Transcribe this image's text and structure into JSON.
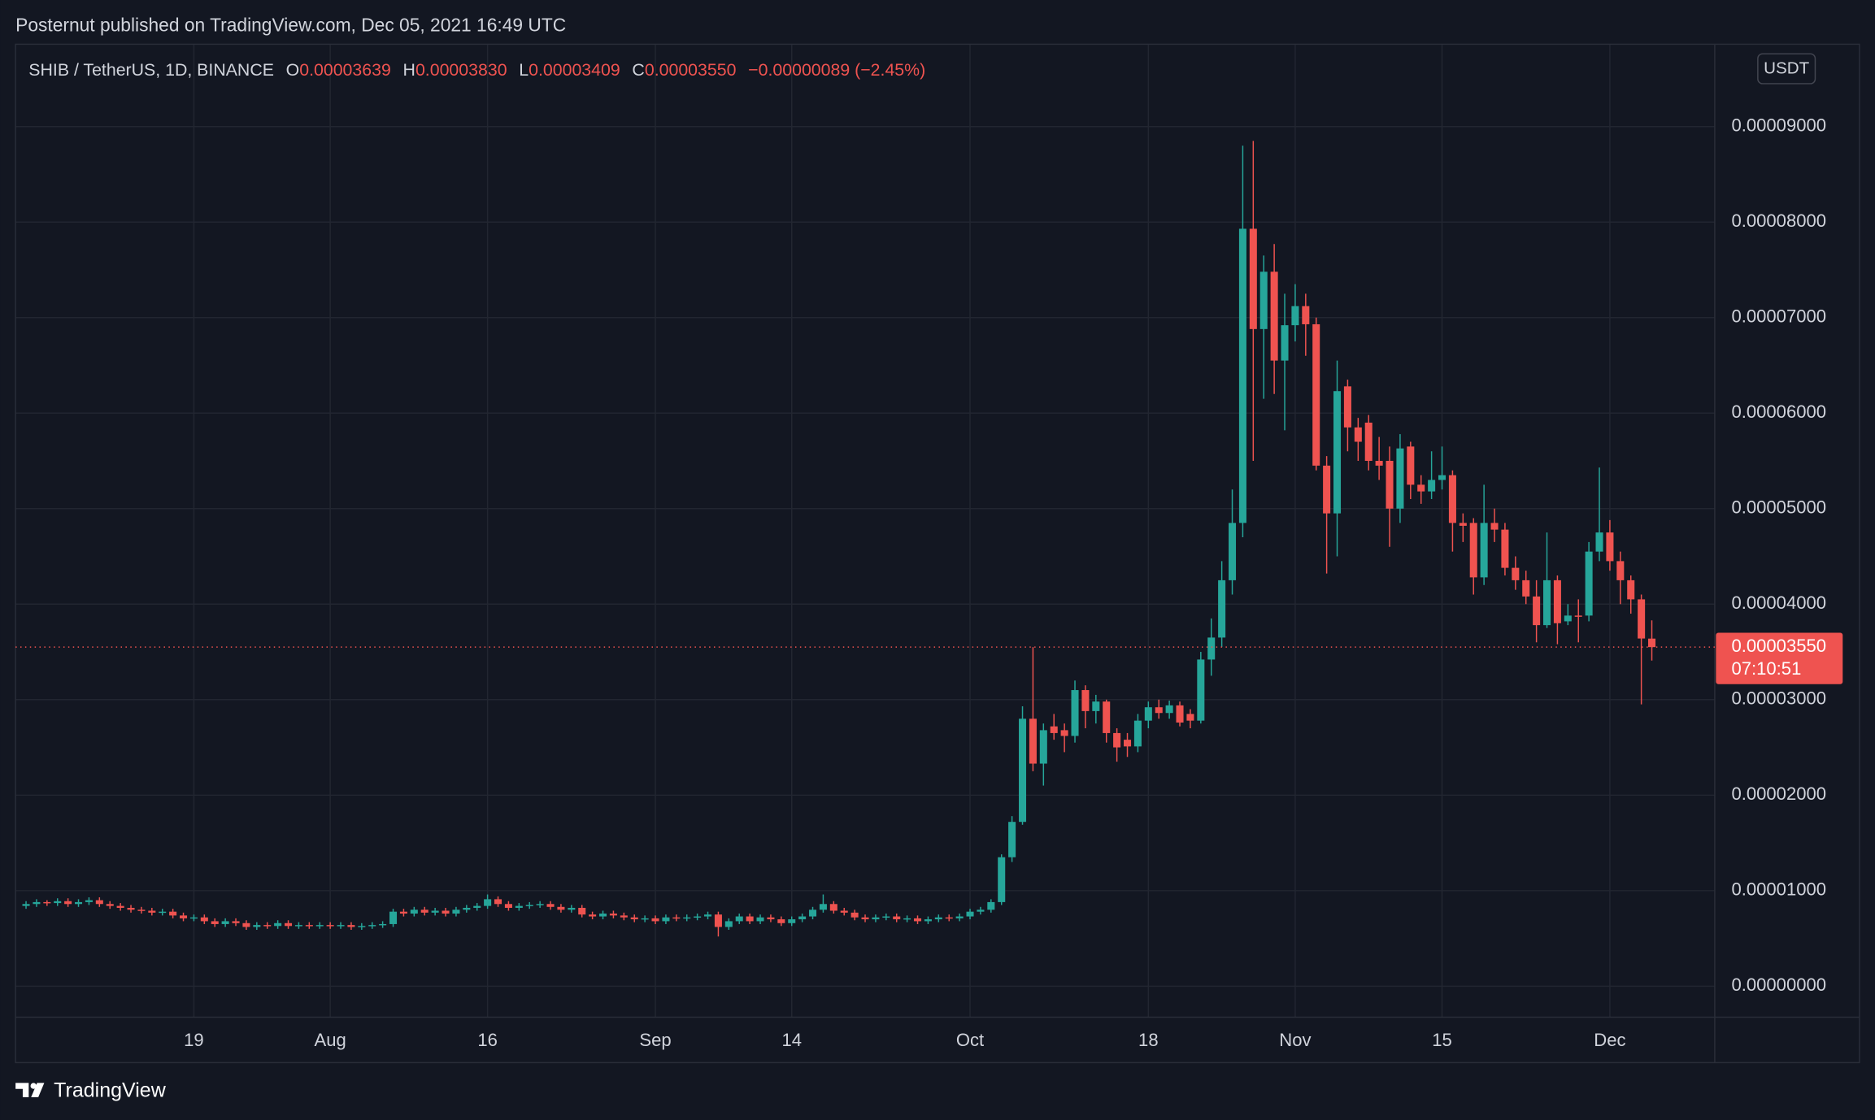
{
  "header": {
    "published": "Posternut published on TradingView.com, Dec 05, 2021 16:49 UTC",
    "currency": "USDT"
  },
  "legend": {
    "symbol": "SHIB / TetherUS, 1D, BINANCE",
    "open_label": "O",
    "open": "0.00003639",
    "high_label": "H",
    "high": "0.00003830",
    "low_label": "L",
    "low": "0.00003409",
    "close_label": "C",
    "close": "0.00003550",
    "change": "−0.00000089 (−2.45%)"
  },
  "footer": {
    "brand": "TradingView"
  },
  "chart_data": {
    "type": "candlestick",
    "up_color": "#26a69a",
    "down_color": "#ef5350",
    "grid": true,
    "last_price_label": "0.00003550",
    "countdown": "07:10:51",
    "xlim": [
      "2021-07-02",
      "2021-12-11"
    ],
    "xticks": [
      {
        "value": "2021-07-19",
        "label": "19"
      },
      {
        "value": "2021-08-01",
        "label": "Aug"
      },
      {
        "value": "2021-08-16",
        "label": "16"
      },
      {
        "value": "2021-09-01",
        "label": "Sep"
      },
      {
        "value": "2021-09-14",
        "label": "14"
      },
      {
        "value": "2021-10-01",
        "label": "Oct"
      },
      {
        "value": "2021-10-18",
        "label": "18"
      },
      {
        "value": "2021-11-01",
        "label": "Nov"
      },
      {
        "value": "2021-11-15",
        "label": "15"
      },
      {
        "value": "2021-12-01",
        "label": "Dec"
      }
    ],
    "ylim": [
      -3.25e-06,
      9.862e-05
    ],
    "yticks": [
      {
        "value": 0,
        "label": "0.00000000"
      },
      {
        "value": 1e-05,
        "label": "0.00001000"
      },
      {
        "value": 2e-05,
        "label": "0.00002000"
      },
      {
        "value": 3e-05,
        "label": "0.00003000"
      },
      {
        "value": 4e-05,
        "label": "0.00004000"
      },
      {
        "value": 5e-05,
        "label": "0.00005000"
      },
      {
        "value": 6e-05,
        "label": "0.00006000"
      },
      {
        "value": 7e-05,
        "label": "0.00007000"
      },
      {
        "value": 8e-05,
        "label": "0.00008000"
      },
      {
        "value": 9e-05,
        "label": "0.00009000"
      }
    ],
    "x": [
      "2021-07-03",
      "2021-07-04",
      "2021-07-05",
      "2021-07-06",
      "2021-07-07",
      "2021-07-08",
      "2021-07-09",
      "2021-07-10",
      "2021-07-11",
      "2021-07-12",
      "2021-07-13",
      "2021-07-14",
      "2021-07-15",
      "2021-07-16",
      "2021-07-17",
      "2021-07-18",
      "2021-07-19",
      "2021-07-20",
      "2021-07-21",
      "2021-07-22",
      "2021-07-23",
      "2021-07-24",
      "2021-07-25",
      "2021-07-26",
      "2021-07-27",
      "2021-07-28",
      "2021-07-29",
      "2021-07-30",
      "2021-07-31",
      "2021-08-01",
      "2021-08-02",
      "2021-08-03",
      "2021-08-04",
      "2021-08-05",
      "2021-08-06",
      "2021-08-07",
      "2021-08-08",
      "2021-08-09",
      "2021-08-10",
      "2021-08-11",
      "2021-08-12",
      "2021-08-13",
      "2021-08-14",
      "2021-08-15",
      "2021-08-16",
      "2021-08-17",
      "2021-08-18",
      "2021-08-19",
      "2021-08-20",
      "2021-08-21",
      "2021-08-22",
      "2021-08-23",
      "2021-08-24",
      "2021-08-25",
      "2021-08-26",
      "2021-08-27",
      "2021-08-28",
      "2021-08-29",
      "2021-08-30",
      "2021-08-31",
      "2021-09-01",
      "2021-09-02",
      "2021-09-03",
      "2021-09-04",
      "2021-09-05",
      "2021-09-06",
      "2021-09-07",
      "2021-09-08",
      "2021-09-09",
      "2021-09-10",
      "2021-09-11",
      "2021-09-12",
      "2021-09-13",
      "2021-09-14",
      "2021-09-15",
      "2021-09-16",
      "2021-09-17",
      "2021-09-18",
      "2021-09-19",
      "2021-09-20",
      "2021-09-21",
      "2021-09-22",
      "2021-09-23",
      "2021-09-24",
      "2021-09-25",
      "2021-09-26",
      "2021-09-27",
      "2021-09-28",
      "2021-09-29",
      "2021-09-30",
      "2021-10-01",
      "2021-10-02",
      "2021-10-03",
      "2021-10-04",
      "2021-10-05",
      "2021-10-06",
      "2021-10-07",
      "2021-10-08",
      "2021-10-09",
      "2021-10-10",
      "2021-10-11",
      "2021-10-12",
      "2021-10-13",
      "2021-10-14",
      "2021-10-15",
      "2021-10-16",
      "2021-10-17",
      "2021-10-18",
      "2021-10-19",
      "2021-10-20",
      "2021-10-21",
      "2021-10-22",
      "2021-10-23",
      "2021-10-24",
      "2021-10-25",
      "2021-10-26",
      "2021-10-27",
      "2021-10-28",
      "2021-10-29",
      "2021-10-30",
      "2021-10-31",
      "2021-11-01",
      "2021-11-02",
      "2021-11-03",
      "2021-11-04",
      "2021-11-05",
      "2021-11-06",
      "2021-11-07",
      "2021-11-08",
      "2021-11-09",
      "2021-11-10",
      "2021-11-11",
      "2021-11-12",
      "2021-11-13",
      "2021-11-14",
      "2021-11-15",
      "2021-11-16",
      "2021-11-17",
      "2021-11-18",
      "2021-11-19",
      "2021-11-20",
      "2021-11-21",
      "2021-11-22",
      "2021-11-23",
      "2021-11-24",
      "2021-11-25",
      "2021-11-26",
      "2021-11-27",
      "2021-11-28",
      "2021-11-29",
      "2021-11-30",
      "2021-12-01",
      "2021-12-02",
      "2021-12-03",
      "2021-12-04",
      "2021-12-05"
    ],
    "open": [
      8.4e-06,
      8.6e-06,
      8.8e-06,
      8.7e-06,
      8.9e-06,
      8.6e-06,
      8.8e-06,
      9e-06,
      8.6e-06,
      8.4e-06,
      8.2e-06,
      8e-06,
      7.9e-06,
      7.7e-06,
      7.8e-06,
      7.4e-06,
      7.1e-06,
      7.2e-06,
      6.8e-06,
      6.5e-06,
      6.8e-06,
      6.6e-06,
      6.2e-06,
      6.4e-06,
      6.3e-06,
      6.6e-06,
      6.3e-06,
      6.4e-06,
      6.3e-06,
      6.4e-06,
      6.3e-06,
      6.4e-06,
      6.2e-06,
      6.3e-06,
      6.4e-06,
      6.5e-06,
      7.8e-06,
      7.6e-06,
      8e-06,
      7.7e-06,
      7.9e-06,
      7.6e-06,
      8e-06,
      8.2e-06,
      8.4e-06,
      9.1e-06,
      8.6e-06,
      8.2e-06,
      8.4e-06,
      8.5e-06,
      8.6e-06,
      8.3e-06,
      8e-06,
      8.2e-06,
      7.5e-06,
      7.3e-06,
      7.6e-06,
      7.4e-06,
      7.2e-06,
      7e-06,
      7.1e-06,
      6.8e-06,
      7.2e-06,
      7.1e-06,
      7.2e-06,
      7.3e-06,
      7.5e-06,
      6.2e-06,
      6.8e-06,
      7.3e-06,
      6.8e-06,
      7.2e-06,
      7e-06,
      6.6e-06,
      7e-06,
      7.3e-06,
      8e-06,
      8.6e-06,
      7.9e-06,
      7.7e-06,
      7.2e-06,
      7e-06,
      7.2e-06,
      7.3e-06,
      7e-06,
      7.1e-06,
      6.8e-06,
      7e-06,
      7.2e-06,
      7.1e-06,
      7.3e-06,
      7.8e-06,
      8e-06,
      8.8e-06,
      1.35e-05,
      1.72e-05,
      2.8e-05,
      2.33e-05,
      2.72e-05,
      2.68e-05,
      2.62e-05,
      3.1e-05,
      2.88e-05,
      2.98e-05,
      2.65e-05,
      2.58e-05,
      2.51e-05,
      2.78e-05,
      2.92e-05,
      2.86e-05,
      2.94e-05,
      2.85e-05,
      2.78e-05,
      3.42e-05,
      3.65e-05,
      4.25e-05,
      4.85e-05,
      7.93e-05,
      6.88e-05,
      7.48e-05,
      6.55e-05,
      6.92e-05,
      7.12e-05,
      6.93e-05,
      5.45e-05,
      4.95e-05,
      6.28e-05,
      5.85e-05,
      5.9e-05,
      5.5e-05,
      5.5e-05,
      5e-05,
      5.65e-05,
      5.25e-05,
      5.18e-05,
      5.3e-05,
      5.35e-05,
      4.85e-05,
      4.85e-05,
      4.28e-05,
      4.85e-05,
      4.78e-05,
      4.38e-05,
      4.25e-05,
      4.08e-05,
      3.78e-05,
      4.25e-05,
      3.82e-05,
      3.88e-05,
      3.88e-05,
      4.55e-05,
      4.75e-05,
      4.45e-05,
      4.25e-05,
      4.05e-05,
      3.639e-05
    ],
    "high": [
      8.9e-06,
      9.1e-06,
      9e-06,
      9.2e-06,
      9.2e-06,
      9.1e-06,
      9.3e-06,
      9.3e-06,
      8.9e-06,
      8.7e-06,
      8.5e-06,
      8.3e-06,
      8.2e-06,
      8.1e-06,
      8.1e-06,
      7.7e-06,
      7.5e-06,
      7.5e-06,
      7.1e-06,
      7.1e-06,
      7.1e-06,
      6.9e-06,
      6.7e-06,
      6.7e-06,
      6.9e-06,
      6.9e-06,
      6.7e-06,
      6.7e-06,
      6.7e-06,
      6.7e-06,
      6.7e-06,
      6.7e-06,
      6.6e-06,
      6.7e-06,
      6.8e-06,
      8.1e-06,
      8.1e-06,
      8.3e-06,
      8.3e-06,
      8.2e-06,
      8.2e-06,
      8.3e-06,
      8.5e-06,
      8.7e-06,
      9.6e-06,
      9.4e-06,
      8.9e-06,
      8.7e-06,
      8.8e-06,
      8.9e-06,
      8.9e-06,
      8.6e-06,
      8.5e-06,
      8.5e-06,
      7.8e-06,
      7.9e-06,
      7.9e-06,
      7.7e-06,
      7.5e-06,
      7.4e-06,
      7.4e-06,
      7.5e-06,
      7.5e-06,
      7.5e-06,
      7.6e-06,
      7.8e-06,
      7.8e-06,
      7.1e-06,
      7.6e-06,
      7.6e-06,
      7.5e-06,
      7.5e-06,
      7.3e-06,
      7.3e-06,
      7.6e-06,
      8.3e-06,
      9.6e-06,
      8.9e-06,
      8.2e-06,
      8e-06,
      7.5e-06,
      7.5e-06,
      7.6e-06,
      7.6e-06,
      7.4e-06,
      7.4e-06,
      7.3e-06,
      7.5e-06,
      7.5e-06,
      7.6e-06,
      8.1e-06,
      8.3e-06,
      9.1e-06,
      1.38e-05,
      1.78e-05,
      2.93e-05,
      3.55e-05,
      2.75e-05,
      2.85e-05,
      2.75e-05,
      3.2e-05,
      3.15e-05,
      3.05e-05,
      3e-05,
      2.7e-05,
      2.65e-05,
      2.85e-05,
      2.98e-05,
      3e-05,
      2.99e-05,
      2.98e-05,
      2.9e-05,
      3.5e-05,
      3.85e-05,
      4.45e-05,
      5.2e-05,
      8.8e-05,
      8.85e-05,
      7.65e-05,
      7.77e-05,
      7.25e-05,
      7.35e-05,
      7.25e-05,
      7e-05,
      5.55e-05,
      6.55e-05,
      6.35e-05,
      5.95e-05,
      5.98e-05,
      5.75e-05,
      5.65e-05,
      5.78e-05,
      5.7e-05,
      5.35e-05,
      5.6e-05,
      5.65e-05,
      5.4e-05,
      4.95e-05,
      4.9e-05,
      5.25e-05,
      5e-05,
      4.85e-05,
      4.5e-05,
      4.35e-05,
      4.25e-05,
      4.75e-05,
      4.3e-05,
      4e-05,
      4.05e-05,
      4.65e-05,
      5.43e-05,
      4.88e-05,
      4.55e-05,
      4.3e-05,
      4.1e-05,
      3.83e-05
    ],
    "low": [
      8.1e-06,
      8.3e-06,
      8.4e-06,
      8.4e-06,
      8.3e-06,
      8.3e-06,
      8.5e-06,
      8.3e-06,
      8.1e-06,
      7.9e-06,
      7.7e-06,
      7.6e-06,
      7.4e-06,
      7.4e-06,
      7.1e-06,
      6.8e-06,
      6.8e-06,
      6.5e-06,
      6.2e-06,
      6.2e-06,
      6.3e-06,
      5.9e-06,
      5.9e-06,
      6e-06,
      6e-06,
      6e-06,
      6e-06,
      6e-06,
      6e-06,
      6e-06,
      6e-06,
      5.9e-06,
      5.9e-06,
      6e-06,
      6.1e-06,
      6.2e-06,
      7.3e-06,
      7.3e-06,
      7.4e-06,
      7.4e-06,
      7.3e-06,
      7.3e-06,
      7.7e-06,
      7.9e-06,
      8.1e-06,
      8.3e-06,
      7.9e-06,
      7.9e-06,
      8.1e-06,
      8.2e-06,
      8e-06,
      7.7e-06,
      7.7e-06,
      7.2e-06,
      7e-06,
      7e-06,
      7.1e-06,
      6.9e-06,
      6.7e-06,
      6.7e-06,
      6.5e-06,
      6.5e-06,
      6.8e-06,
      6.8e-06,
      6.9e-06,
      7e-06,
      5.2e-06,
      5.9e-06,
      6.5e-06,
      6.5e-06,
      6.5e-06,
      6.7e-06,
      6.3e-06,
      6.3e-06,
      6.7e-06,
      7e-06,
      7.7e-06,
      7.6e-06,
      7.4e-06,
      6.9e-06,
      6.7e-06,
      6.7e-06,
      6.9e-06,
      6.7e-06,
      6.7e-06,
      6.5e-06,
      6.5e-06,
      6.7e-06,
      6.8e-06,
      6.8e-06,
      7e-06,
      7.5e-06,
      7.7e-06,
      8.5e-06,
      1.3e-05,
      1.69e-05,
      2.25e-05,
      2.1e-05,
      2.58e-05,
      2.45e-05,
      2.55e-05,
      2.7e-05,
      2.75e-05,
      2.55e-05,
      2.35e-05,
      2.4e-05,
      2.45e-05,
      2.7e-05,
      2.8e-05,
      2.8e-05,
      2.72e-05,
      2.7e-05,
      2.75e-05,
      3.25e-05,
      3.55e-05,
      4.1e-05,
      4.7e-05,
      5.5e-05,
      6.15e-05,
      6.2e-05,
      5.82e-05,
      6.75e-05,
      6.6e-05,
      5.4e-05,
      4.32e-05,
      4.5e-05,
      5.6e-05,
      5.5e-05,
      5.4e-05,
      5.3e-05,
      4.6e-05,
      4.85e-05,
      5.1e-05,
      5.05e-05,
      5.1e-05,
      5.2e-05,
      4.55e-05,
      4.65e-05,
      4.1e-05,
      4.2e-05,
      4.65e-05,
      4.3e-05,
      4.15e-05,
      4e-05,
      3.6e-05,
      3.75e-05,
      3.58e-05,
      3.78e-05,
      3.6e-05,
      3.82e-05,
      4.45e-05,
      4.35e-05,
      4e-05,
      3.9e-05,
      2.95e-05,
      3.409e-05
    ],
    "close": [
      8.6e-06,
      8.8e-06,
      8.7e-06,
      8.9e-06,
      8.6e-06,
      8.8e-06,
      9e-06,
      8.6e-06,
      8.4e-06,
      8.2e-06,
      8e-06,
      7.9e-06,
      7.7e-06,
      7.8e-06,
      7.4e-06,
      7.1e-06,
      7.2e-06,
      6.8e-06,
      6.5e-06,
      6.8e-06,
      6.6e-06,
      6.2e-06,
      6.4e-06,
      6.3e-06,
      6.6e-06,
      6.3e-06,
      6.4e-06,
      6.3e-06,
      6.4e-06,
      6.3e-06,
      6.4e-06,
      6.2e-06,
      6.3e-06,
      6.4e-06,
      6.5e-06,
      7.8e-06,
      7.6e-06,
      8e-06,
      7.7e-06,
      7.9e-06,
      7.6e-06,
      8e-06,
      8.2e-06,
      8.4e-06,
      9.1e-06,
      8.6e-06,
      8.2e-06,
      8.4e-06,
      8.5e-06,
      8.6e-06,
      8.3e-06,
      8e-06,
      8.2e-06,
      7.5e-06,
      7.3e-06,
      7.6e-06,
      7.4e-06,
      7.2e-06,
      7e-06,
      7.1e-06,
      6.8e-06,
      7.2e-06,
      7.1e-06,
      7.2e-06,
      7.3e-06,
      7.5e-06,
      6.2e-06,
      6.8e-06,
      7.3e-06,
      6.8e-06,
      7.2e-06,
      7e-06,
      6.6e-06,
      7e-06,
      7.3e-06,
      8e-06,
      8.6e-06,
      7.9e-06,
      7.7e-06,
      7.2e-06,
      7e-06,
      7.2e-06,
      7.3e-06,
      7e-06,
      7.1e-06,
      6.8e-06,
      7e-06,
      7.2e-06,
      7.1e-06,
      7.3e-06,
      7.8e-06,
      8e-06,
      8.8e-06,
      1.35e-05,
      1.72e-05,
      2.8e-05,
      2.33e-05,
      2.68e-05,
      2.65e-05,
      2.62e-05,
      3.1e-05,
      2.88e-05,
      2.98e-05,
      2.65e-05,
      2.5e-05,
      2.51e-05,
      2.78e-05,
      2.92e-05,
      2.86e-05,
      2.94e-05,
      2.76e-05,
      2.78e-05,
      3.42e-05,
      3.65e-05,
      4.25e-05,
      4.85e-05,
      7.93e-05,
      6.88e-05,
      7.48e-05,
      6.55e-05,
      6.92e-05,
      7.12e-05,
      6.93e-05,
      5.45e-05,
      4.95e-05,
      6.23e-05,
      5.85e-05,
      5.7e-05,
      5.5e-05,
      5.45e-05,
      5e-05,
      5.63e-05,
      5.25e-05,
      5.18e-05,
      5.3e-05,
      5.35e-05,
      4.85e-05,
      4.82e-05,
      4.28e-05,
      4.85e-05,
      4.78e-05,
      4.38e-05,
      4.25e-05,
      4.08e-05,
      3.78e-05,
      4.25e-05,
      3.8e-05,
      3.88e-05,
      3.87e-05,
      4.55e-05,
      4.75e-05,
      4.45e-05,
      4.25e-05,
      4.05e-05,
      3.64e-05,
      3.55e-05
    ]
  }
}
